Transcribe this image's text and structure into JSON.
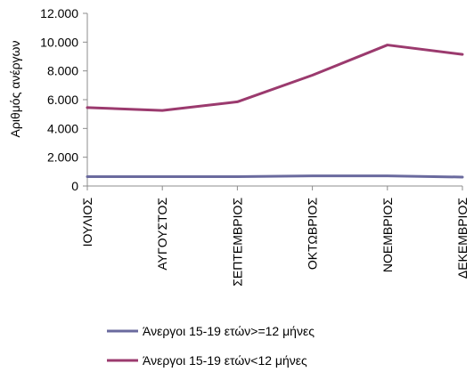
{
  "chart_data": {
    "type": "line",
    "categories": [
      "ΙΟΥΛΙΟΣ",
      "ΑΥΓΟΥΣΤΟΣ",
      "ΣΕΠΤΕΜΒΡΙΟΣ",
      "ΟΚΤΩΒΡΙΟΣ",
      "ΝΟΕΜΒΡΙΟΣ",
      "ΔΕΚΕΜΒΡΙΟΣ"
    ],
    "series": [
      {
        "name": "Άνεργοι 15-19 ετών>=12 μήνες",
        "color": "#6a6a9e",
        "values": [
          650,
          650,
          650,
          700,
          700,
          620
        ]
      },
      {
        "name": "Άνεργοι 15-19 ετών<12 μήνες",
        "color": "#9b3a6e",
        "values": [
          5450,
          5250,
          5850,
          7700,
          9800,
          9150
        ]
      }
    ],
    "ylabel": "Αριθμός ανέργων",
    "ylim": [
      0,
      12000
    ],
    "yticks": [
      0,
      2000,
      4000,
      6000,
      8000,
      10000,
      12000
    ],
    "ytick_labels": [
      "0",
      "2.000",
      "4.000",
      "6.000",
      "8.000",
      "10.000",
      "12.000"
    ],
    "grid": false,
    "legend_position": "bottom"
  }
}
